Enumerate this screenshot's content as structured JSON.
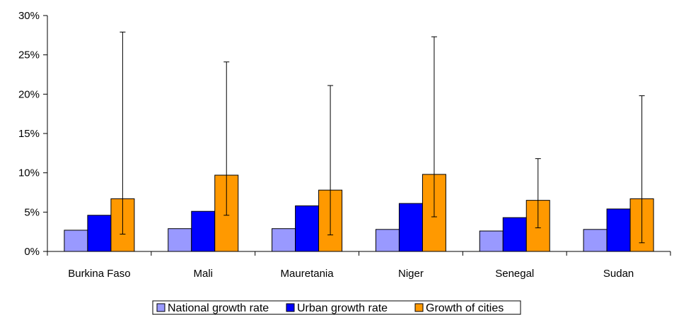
{
  "chart_data": {
    "type": "bar",
    "categories": [
      "Burkina Faso",
      "Mali",
      "Mauretania",
      "Niger",
      "Senegal",
      "Sudan"
    ],
    "series": [
      {
        "name": "National growth rate",
        "color": "#9999ff",
        "values": [
          2.7,
          2.9,
          2.9,
          2.8,
          2.6,
          2.8
        ]
      },
      {
        "name": "Urban growth rate",
        "color": "#0000ff",
        "values": [
          4.6,
          5.1,
          5.8,
          6.1,
          4.3,
          5.4
        ]
      },
      {
        "name": "Growth of cities",
        "color": "#ff9900",
        "values": [
          6.7,
          9.7,
          7.8,
          9.8,
          6.5,
          6.7
        ],
        "error_range": [
          [
            2.2,
            27.9
          ],
          [
            4.6,
            24.1
          ],
          [
            2.1,
            21.1
          ],
          [
            4.4,
            27.3
          ],
          [
            3.0,
            11.8
          ],
          [
            1.1,
            19.8
          ]
        ]
      }
    ],
    "y_ticks": [
      "0%",
      "5%",
      "10%",
      "15%",
      "20%",
      "25%",
      "30%"
    ],
    "ylim": [
      0,
      30
    ],
    "grid": false,
    "legend_position": "bottom"
  }
}
